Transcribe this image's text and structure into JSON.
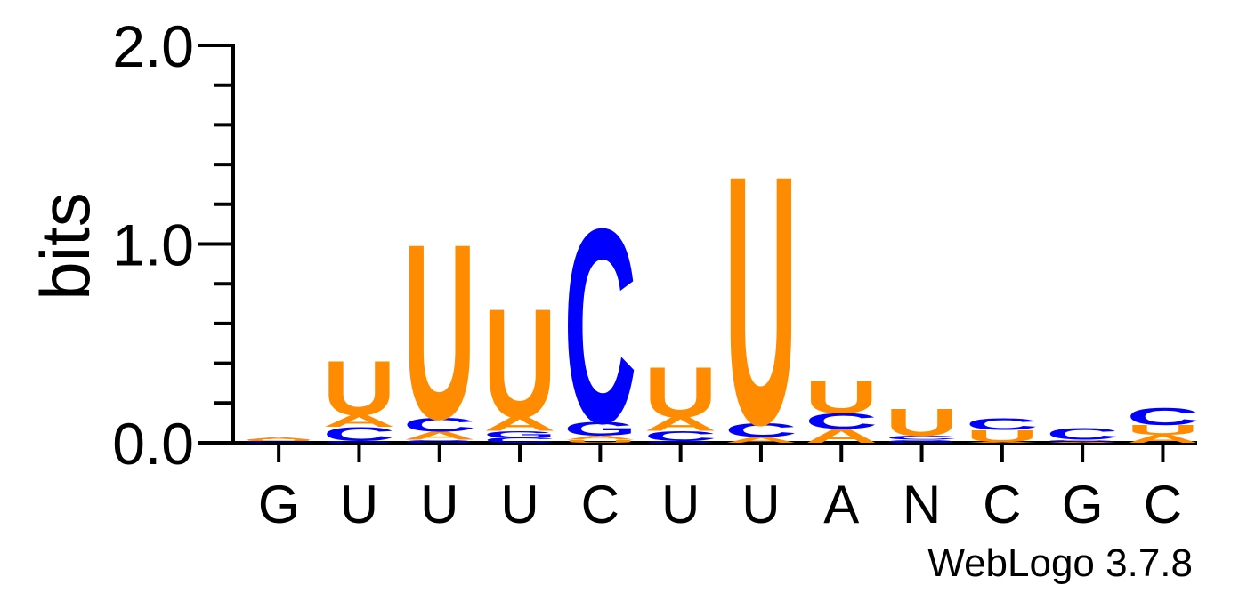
{
  "chart_data": {
    "type": "sequence-logo",
    "ylabel": "bits",
    "ylim": [
      0,
      2
    ],
    "yticks": [
      "0.0",
      "1.0",
      "2.0"
    ],
    "positions": [
      "G",
      "U",
      "U",
      "U",
      "C",
      "U",
      "U",
      "A",
      "N",
      "C",
      "G",
      "C"
    ],
    "credit": "WebLogo 3.7.8",
    "colors": {
      "A": "#ff8c00",
      "U": "#ff8c00",
      "C": "#0000ff",
      "G": "#0000ff"
    },
    "stacks": [
      [
        {
          "base": "G",
          "bits": 0.004
        },
        {
          "base": "C",
          "bits": 0.006
        },
        {
          "base": "U",
          "bits": 0.006
        },
        {
          "base": "A",
          "bits": 0.01
        }
      ],
      [
        {
          "base": "G",
          "bits": 0.01
        },
        {
          "base": "C",
          "bits": 0.07
        },
        {
          "base": "A",
          "bits": 0.06
        },
        {
          "base": "U",
          "bits": 0.28
        }
      ],
      [
        {
          "base": "G",
          "bits": 0.015
        },
        {
          "base": "A",
          "bits": 0.04
        },
        {
          "base": "C",
          "bits": 0.07
        },
        {
          "base": "U",
          "bits": 0.9
        }
      ],
      [
        {
          "base": "C",
          "bits": 0.025
        },
        {
          "base": "G",
          "bits": 0.035
        },
        {
          "base": "A",
          "bits": 0.07
        },
        {
          "base": "U",
          "bits": 0.56
        }
      ],
      [
        {
          "base": "U",
          "bits": 0.015
        },
        {
          "base": "A",
          "bits": 0.02
        },
        {
          "base": "G",
          "bits": 0.07
        },
        {
          "base": "C",
          "bits": 1.0
        }
      ],
      [
        {
          "base": "G",
          "bits": 0.01
        },
        {
          "base": "C",
          "bits": 0.05
        },
        {
          "base": "A",
          "bits": 0.07
        },
        {
          "base": "U",
          "bits": 0.26
        }
      ],
      [
        {
          "base": "A",
          "bits": 0.03
        },
        {
          "base": "C",
          "bits": 0.07
        },
        {
          "base": "U",
          "bits": 1.28
        }
      ],
      [
        {
          "base": "A",
          "bits": 0.07
        },
        {
          "base": "C",
          "bits": 0.08
        },
        {
          "base": "U",
          "bits": 0.17
        }
      ],
      [
        {
          "base": "G",
          "bits": 0.015
        },
        {
          "base": "C",
          "bits": 0.02
        },
        {
          "base": "U",
          "bits": 0.14
        }
      ],
      [
        {
          "base": "A",
          "bits": 0.005
        },
        {
          "base": "U",
          "bits": 0.06
        },
        {
          "base": "C",
          "bits": 0.06
        }
      ],
      [
        {
          "base": "A",
          "bits": 0.005
        },
        {
          "base": "G",
          "bits": 0.01
        },
        {
          "base": "C",
          "bits": 0.06
        }
      ],
      [
        {
          "base": "A",
          "bits": 0.04
        },
        {
          "base": "U",
          "bits": 0.05
        },
        {
          "base": "C",
          "bits": 0.09
        }
      ]
    ]
  }
}
